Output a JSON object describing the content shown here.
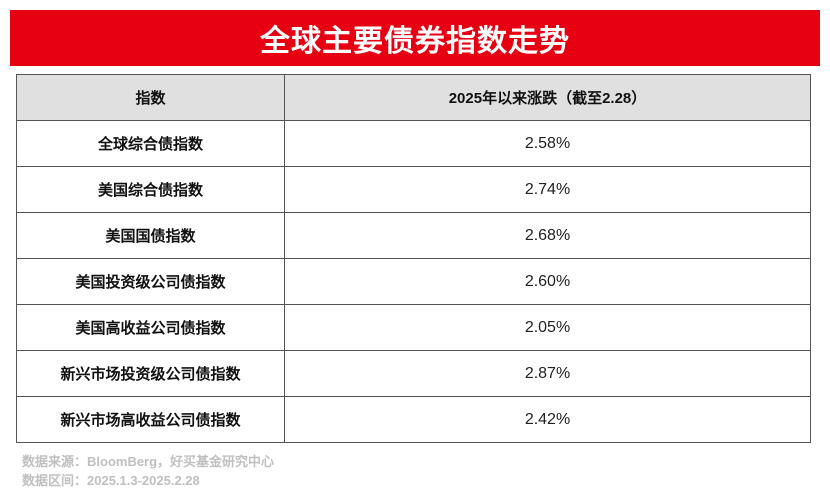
{
  "title": "全球主要债券指数走势",
  "table": {
    "headers": [
      "指数",
      "2025年以来涨跌（截至2.28）"
    ],
    "rows": [
      {
        "name": "全球综合债指数",
        "value": "2.58%"
      },
      {
        "name": "美国综合债指数",
        "value": "2.74%"
      },
      {
        "name": "美国国债指数",
        "value": "2.68%"
      },
      {
        "name": "美国投资级公司债指数",
        "value": "2.60%"
      },
      {
        "name": "美国高收益公司债指数",
        "value": "2.05%"
      },
      {
        "name": "新兴市场投资级公司债指数",
        "value": "2.87%"
      },
      {
        "name": "新兴市场高收益公司债指数",
        "value": "2.42%"
      }
    ]
  },
  "footer": {
    "source": "数据来源：BloomBerg，好买基金研究中心",
    "range": "数据区间：2025.1.3-2025.2.28"
  },
  "colors": {
    "banner": "#e60012",
    "header_bg": "#e0e0e0",
    "footer_text": "#c0c0c0"
  }
}
